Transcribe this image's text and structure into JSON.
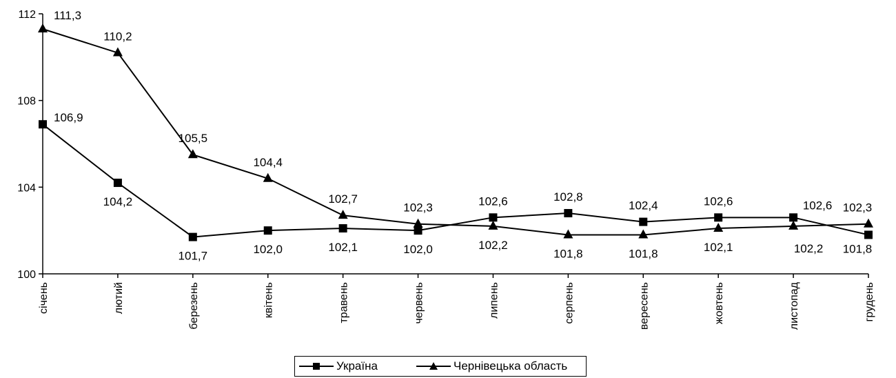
{
  "chart_data": {
    "type": "line",
    "categories": [
      "січень",
      "лютий",
      "березень",
      "квітень",
      "травень",
      "червень",
      "липень",
      "серпень",
      "вересень",
      "жовтень",
      "листопад",
      "грудень"
    ],
    "series": [
      {
        "name": "Україна",
        "marker": "square",
        "values": [
          106.9,
          104.2,
          101.7,
          102.0,
          102.1,
          102.0,
          102.6,
          102.8,
          102.4,
          102.6,
          102.6,
          101.8
        ],
        "labels": [
          "106,9",
          "104,2",
          "101,7",
          "102,0",
          "102,1",
          "102,0",
          "102,6",
          "102,8",
          "102,4",
          "102,6",
          "102,6",
          "101,8"
        ]
      },
      {
        "name": "Чернівецька область",
        "marker": "triangle",
        "values": [
          111.3,
          110.2,
          105.5,
          104.4,
          102.7,
          102.3,
          102.2,
          101.8,
          101.8,
          102.1,
          102.2,
          102.3
        ],
        "labels": [
          "111,3",
          "110,2",
          "105,5",
          "104,4",
          "102,7",
          "102,3",
          "102,2",
          "101,8",
          "101,8",
          "102,1",
          "102,2",
          "102,3"
        ]
      }
    ],
    "ylim": [
      100,
      112
    ],
    "yticks": [
      100,
      104,
      108,
      112
    ],
    "title": "",
    "xlabel": "",
    "ylabel": "",
    "legend_position": "bottom",
    "grid": false,
    "colors": {
      "line": "#000000",
      "background": "#ffffff"
    }
  }
}
